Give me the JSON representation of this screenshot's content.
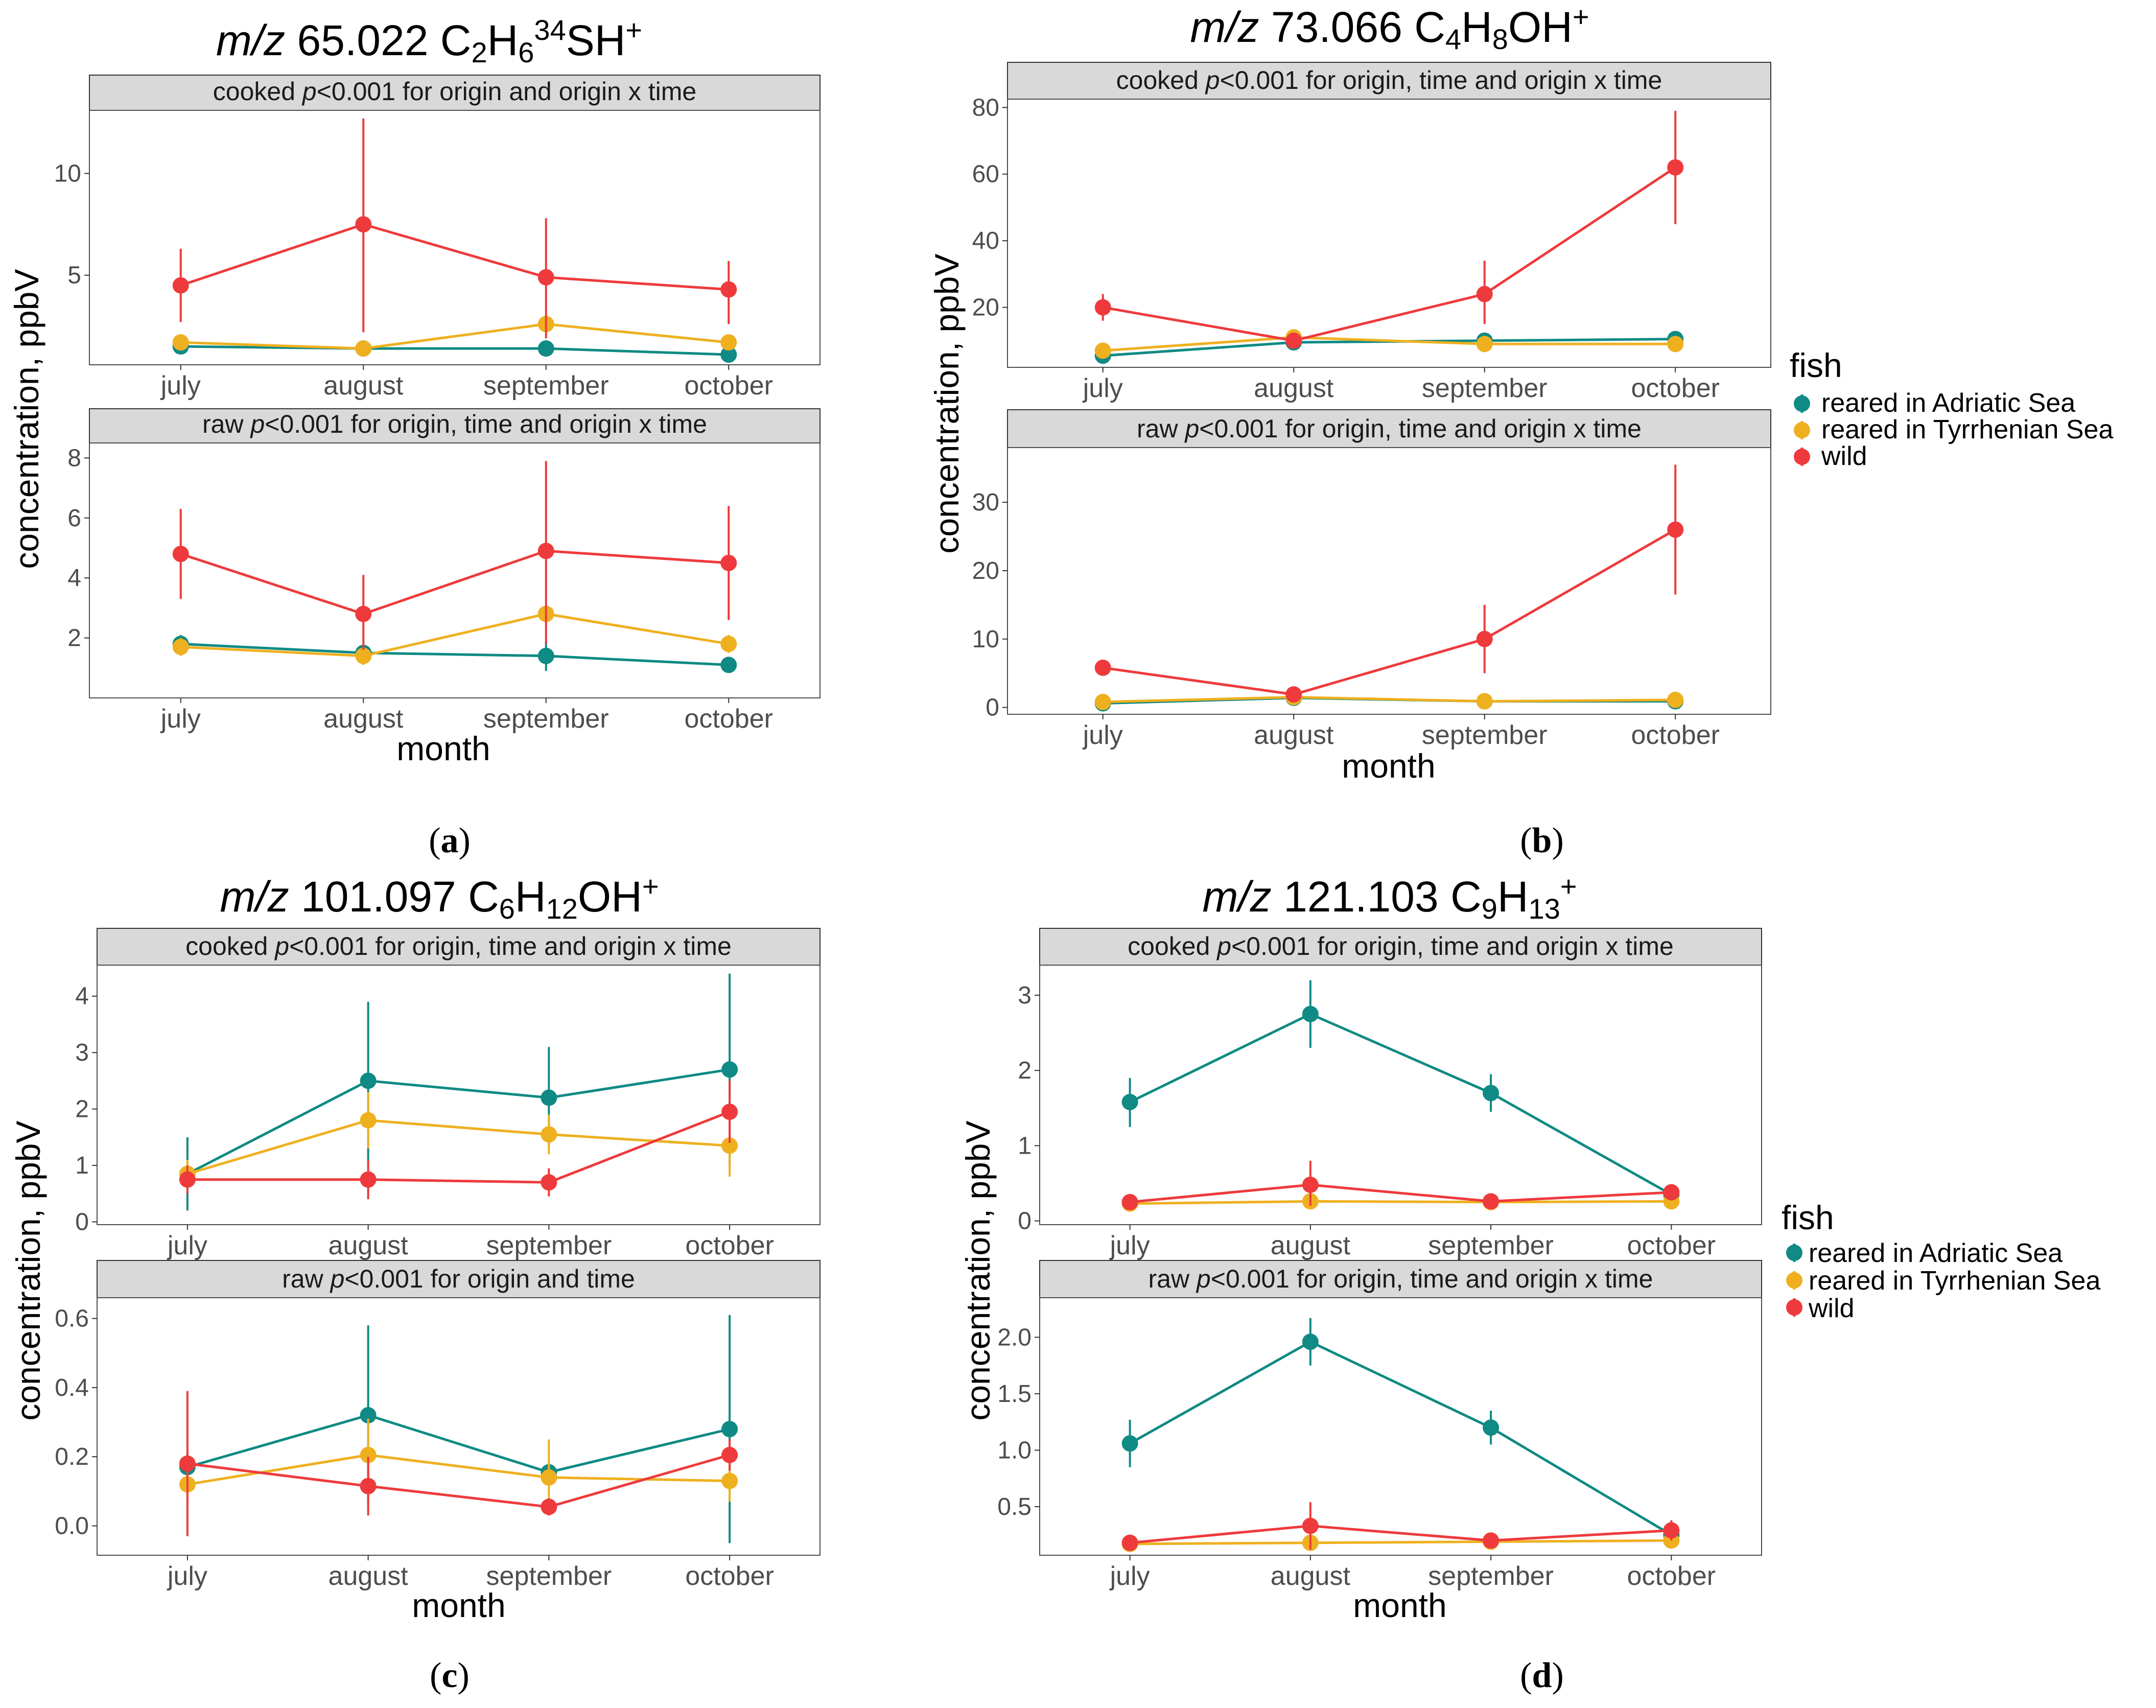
{
  "figure": {
    "months": [
      "july",
      "august",
      "september",
      "october"
    ],
    "xlabel": "month",
    "ylabel": "concentration, ppbV",
    "legend_title": "fish",
    "colors": {
      "adriatic": "#0f8a84",
      "tyrrhenian": "#efb020",
      "wild": "#ee3a3c"
    }
  },
  "chart_data": [
    {
      "id": "a",
      "type": "line",
      "label": "(a)",
      "label_letter": "a",
      "title_italic": "m/z",
      "title_mass": "65.022",
      "title_formula": "C2H634SH+",
      "panels": [
        {
          "key": "cooked",
          "strip_prefix": "cooked",
          "strip_p": "p",
          "strip_suffix": "<0.001 for origin and origin x time",
          "ylim": [
            0.6,
            13.1
          ],
          "yticks": [
            5,
            10
          ],
          "series": [
            {
              "name": "reared in Adriatic Sea",
              "values": [
                1.5,
                1.4,
                1.4,
                1.1
              ],
              "lo": [
                1.3,
                1.2,
                1.2,
                0.9
              ],
              "hi": [
                1.7,
                1.6,
                1.6,
                1.3
              ]
            },
            {
              "name": "reared in Tyrrhenian Sea",
              "values": [
                1.7,
                1.4,
                2.6,
                1.7
              ],
              "lo": [
                1.5,
                1.2,
                2.4,
                1.5
              ],
              "hi": [
                1.9,
                1.6,
                2.8,
                1.9
              ]
            },
            {
              "name": "wild",
              "values": [
                4.5,
                7.5,
                4.9,
                4.3
              ],
              "lo": [
                2.7,
                2.2,
                1.9,
                2.6
              ],
              "hi": [
                6.3,
                12.7,
                7.8,
                5.7
              ]
            }
          ]
        },
        {
          "key": "raw",
          "strip_prefix": "raw",
          "strip_p": "p",
          "strip_suffix": "<0.001 for origin, time and origin x time",
          "ylim": [
            0.0,
            8.5
          ],
          "yticks": [
            2,
            4,
            6,
            8
          ],
          "series": [
            {
              "name": "reared in Adriatic Sea",
              "values": [
                1.8,
                1.5,
                1.4,
                1.1
              ],
              "lo": [
                1.5,
                1.2,
                0.9,
                0.9
              ],
              "hi": [
                2.1,
                1.8,
                1.9,
                1.3
              ]
            },
            {
              "name": "reared in Tyrrhenian Sea",
              "values": [
                1.7,
                1.4,
                2.8,
                1.8
              ],
              "lo": [
                1.4,
                1.1,
                2.5,
                1.5
              ],
              "hi": [
                2.0,
                1.7,
                3.1,
                2.1
              ]
            },
            {
              "name": "wild",
              "values": [
                4.8,
                2.8,
                4.9,
                4.5
              ],
              "lo": [
                3.3,
                1.6,
                1.8,
                2.6
              ],
              "hi": [
                6.3,
                4.1,
                7.9,
                6.4
              ]
            }
          ]
        }
      ]
    },
    {
      "id": "b",
      "type": "line",
      "label": "(b)",
      "label_letter": "b",
      "title_italic": "m/z",
      "title_mass": "73.066",
      "title_formula": "C4H8OH+",
      "panels": [
        {
          "key": "cooked",
          "strip_prefix": "cooked",
          "strip_p": "p",
          "strip_suffix": "<0.001 for origin, time and origin x time",
          "ylim": [
            2.0,
            82.5
          ],
          "yticks": [
            20,
            40,
            60,
            80
          ],
          "series": [
            {
              "name": "reared in Adriatic Sea",
              "values": [
                5.5,
                9.5,
                10.0,
                10.5
              ],
              "lo": [
                4.5,
                8.5,
                9.0,
                9.5
              ],
              "hi": [
                6.5,
                10.5,
                11.0,
                11.5
              ]
            },
            {
              "name": "reared in Tyrrhenian Sea",
              "values": [
                7.0,
                11.0,
                9.0,
                9.0
              ],
              "lo": [
                6.0,
                10.0,
                8.0,
                8.0
              ],
              "hi": [
                8.0,
                12.0,
                10.0,
                10.0
              ]
            },
            {
              "name": "wild",
              "values": [
                20.0,
                10.0,
                24.0,
                62.0
              ],
              "lo": [
                16.0,
                9.0,
                15.0,
                45.0
              ],
              "hi": [
                24.0,
                11.0,
                34.0,
                79.0
              ]
            }
          ]
        },
        {
          "key": "raw",
          "strip_prefix": "raw",
          "strip_p": "p",
          "strip_suffix": "<0.001 for origin, time and origin x time",
          "ylim": [
            -1.0,
            38.0
          ],
          "yticks": [
            0,
            10,
            20,
            30
          ],
          "series": [
            {
              "name": "reared in Adriatic Sea",
              "values": [
                0.6,
                1.4,
                0.9,
                0.9
              ],
              "lo": [
                0.3,
                1.0,
                0.6,
                0.6
              ],
              "hi": [
                0.9,
                1.8,
                1.2,
                1.2
              ]
            },
            {
              "name": "reared in Tyrrhenian Sea",
              "values": [
                0.8,
                1.5,
                0.9,
                1.1
              ],
              "lo": [
                0.5,
                1.1,
                0.6,
                0.8
              ],
              "hi": [
                1.1,
                1.9,
                1.2,
                1.4
              ]
            },
            {
              "name": "wild",
              "values": [
                5.8,
                1.9,
                10.0,
                26.0
              ],
              "lo": [
                4.8,
                1.3,
                5.0,
                16.5
              ],
              "hi": [
                6.8,
                2.5,
                15.0,
                35.5
              ]
            }
          ]
        }
      ]
    },
    {
      "id": "c",
      "type": "line",
      "label": "(c)",
      "label_letter": "c",
      "title_italic": "m/z",
      "title_mass": "101.097",
      "title_formula": "C6H12OH+",
      "panels": [
        {
          "key": "cooked",
          "strip_prefix": "cooked",
          "strip_p": "p",
          "strip_suffix": "<0.001 for origin, time and origin x time",
          "ylim": [
            -0.05,
            4.55
          ],
          "yticks": [
            0,
            1,
            2,
            3,
            4
          ],
          "series": [
            {
              "name": "reared in Adriatic Sea",
              "values": [
                0.85,
                2.5,
                2.2,
                2.7
              ],
              "lo": [
                0.2,
                1.1,
                1.3,
                1.0
              ],
              "hi": [
                1.5,
                3.9,
                3.1,
                4.4
              ]
            },
            {
              "name": "reared in Tyrrhenian Sea",
              "values": [
                0.85,
                1.8,
                1.55,
                1.35
              ],
              "lo": [
                0.6,
                1.3,
                1.2,
                0.8
              ],
              "hi": [
                1.1,
                2.3,
                1.9,
                1.9
              ]
            },
            {
              "name": "wild",
              "values": [
                0.75,
                0.75,
                0.7,
                1.95
              ],
              "lo": [
                0.5,
                0.4,
                0.45,
                1.4
              ],
              "hi": [
                1.0,
                1.1,
                0.95,
                2.5
              ]
            }
          ]
        },
        {
          "key": "raw",
          "strip_prefix": "raw",
          "strip_p": "p",
          "strip_suffix": "<0.001 for origin and time",
          "ylim": [
            -0.085,
            0.66
          ],
          "yticks": [
            0.0,
            0.2,
            0.4,
            0.6
          ],
          "series": [
            {
              "name": "reared in Adriatic Sea",
              "values": [
                0.17,
                0.32,
                0.155,
                0.28
              ],
              "lo": [
                0.13,
                0.06,
                0.12,
                -0.05
              ],
              "hi": [
                0.21,
                0.58,
                0.19,
                0.61
              ]
            },
            {
              "name": "reared in Tyrrhenian Sea",
              "values": [
                0.12,
                0.205,
                0.14,
                0.13
              ],
              "lo": [
                0.06,
                0.1,
                0.03,
                0.07
              ],
              "hi": [
                0.18,
                0.31,
                0.25,
                0.19
              ]
            },
            {
              "name": "wild",
              "values": [
                0.18,
                0.115,
                0.055,
                0.205
              ],
              "lo": [
                -0.03,
                0.03,
                0.03,
                0.16
              ],
              "hi": [
                0.39,
                0.2,
                0.08,
                0.25
              ]
            }
          ]
        }
      ]
    },
    {
      "id": "d",
      "type": "line",
      "label": "(d)",
      "label_letter": "d",
      "title_italic": "m/z",
      "title_mass": "121.103",
      "title_formula": "C9H13+",
      "panels": [
        {
          "key": "cooked",
          "strip_prefix": "cooked",
          "strip_p": "p",
          "strip_suffix": "<0.001 for origin, time and origin x time",
          "ylim": [
            -0.05,
            3.4
          ],
          "yticks": [
            0,
            1,
            2,
            3
          ],
          "series": [
            {
              "name": "reared in Adriatic Sea",
              "values": [
                1.58,
                2.75,
                1.7,
                0.35
              ],
              "lo": [
                1.25,
                2.3,
                1.45,
                0.25
              ],
              "hi": [
                1.9,
                3.2,
                1.95,
                0.45
              ]
            },
            {
              "name": "reared in Tyrrhenian Sea",
              "values": [
                0.23,
                0.26,
                0.25,
                0.26
              ],
              "lo": [
                0.18,
                0.21,
                0.2,
                0.21
              ],
              "hi": [
                0.28,
                0.31,
                0.3,
                0.31
              ]
            },
            {
              "name": "wild",
              "values": [
                0.25,
                0.48,
                0.26,
                0.38
              ],
              "lo": [
                0.18,
                0.2,
                0.2,
                0.3
              ],
              "hi": [
                0.32,
                0.8,
                0.32,
                0.46
              ]
            }
          ]
        },
        {
          "key": "raw",
          "strip_prefix": "raw",
          "strip_p": "p",
          "strip_suffix": "<0.001 for origin, time and origin x time",
          "ylim": [
            0.07,
            2.35
          ],
          "yticks": [
            0.5,
            1.0,
            1.5,
            2.0
          ],
          "series": [
            {
              "name": "reared in Adriatic Sea",
              "values": [
                1.06,
                1.96,
                1.2,
                0.25
              ],
              "lo": [
                0.85,
                1.75,
                1.05,
                0.2
              ],
              "hi": [
                1.27,
                2.17,
                1.35,
                0.3
              ]
            },
            {
              "name": "reared in Tyrrhenian Sea",
              "values": [
                0.17,
                0.18,
                0.19,
                0.2
              ],
              "lo": [
                0.13,
                0.14,
                0.15,
                0.16
              ],
              "hi": [
                0.21,
                0.22,
                0.23,
                0.24
              ]
            },
            {
              "name": "wild",
              "values": [
                0.18,
                0.33,
                0.2,
                0.29
              ],
              "lo": [
                0.13,
                0.12,
                0.15,
                0.2
              ],
              "hi": [
                0.23,
                0.54,
                0.25,
                0.38
              ]
            }
          ]
        }
      ]
    }
  ]
}
